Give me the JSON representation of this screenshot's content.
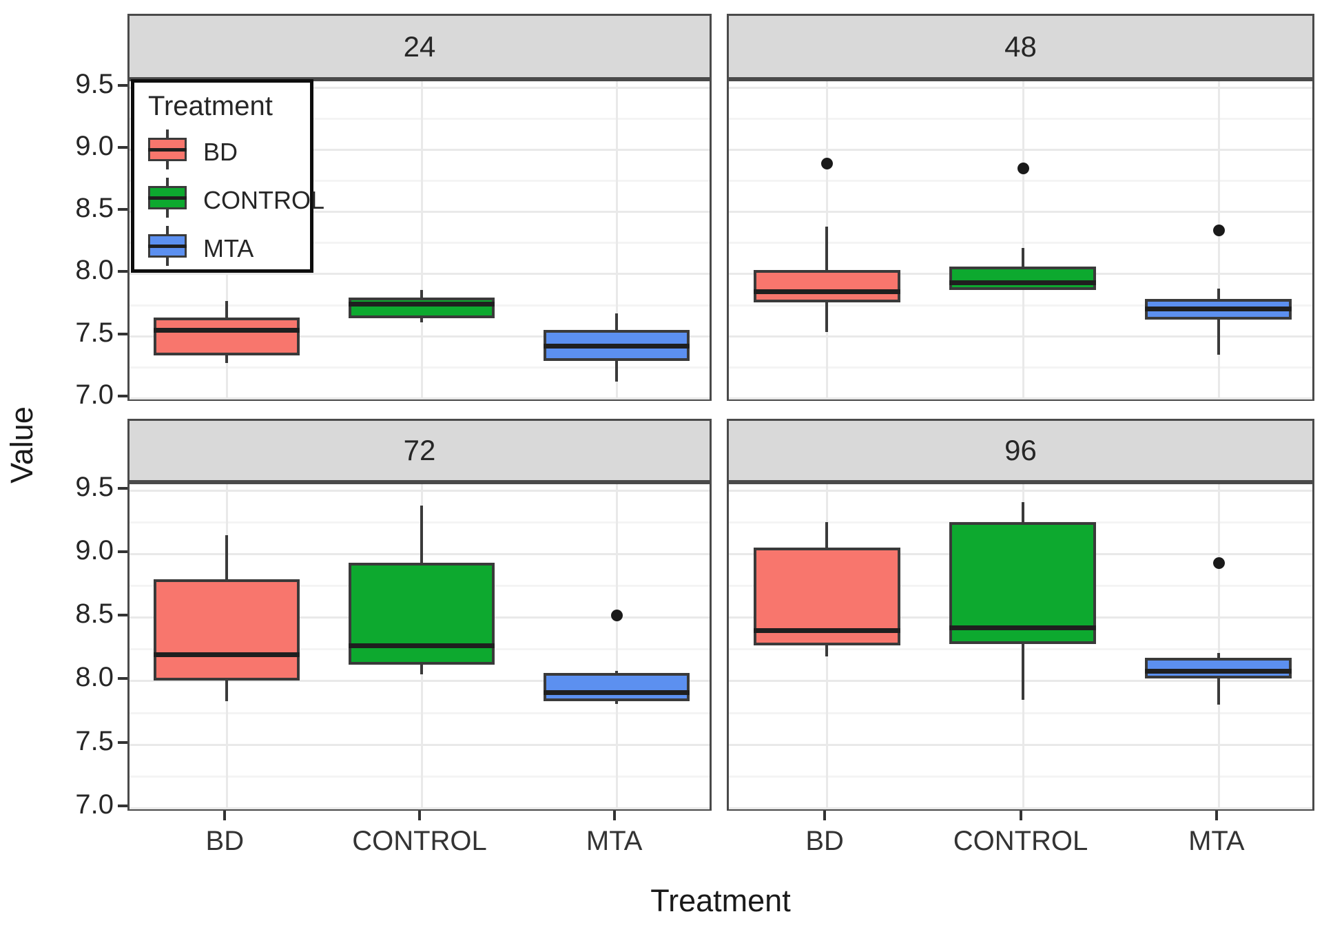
{
  "figure_titles": {
    "y_axis_title": "Value",
    "x_axis_title": "Treatment"
  },
  "legend": {
    "title": "Treatment",
    "items": [
      {
        "label": "BD",
        "color": "#F8766D"
      },
      {
        "label": "CONTROL",
        "color": "#0DA92F"
      },
      {
        "label": "MTA",
        "color": "#5C90F0"
      }
    ]
  },
  "chart_data": {
    "type": "boxplot",
    "xlabel": "Treatment",
    "ylabel": "Value",
    "categories": [
      "BD",
      "CONTROL",
      "MTA"
    ],
    "facet_labels": [
      "24",
      "48",
      "72",
      "96"
    ],
    "ylim": [
      6.96,
      9.55
    ],
    "y_ticks": [
      7.0,
      7.5,
      8.0,
      8.5,
      9.0,
      9.5
    ],
    "y_minor_ticks": [
      7.25,
      7.75,
      8.25,
      8.75,
      9.25
    ],
    "grid": true,
    "legend_position": "inside-top-left-panel",
    "colors": {
      "BD": "#F8766D",
      "CONTROL": "#0DA92F",
      "MTA": "#5C90F0"
    },
    "facets": [
      {
        "label": "24",
        "boxes": [
          {
            "treatment": "BD",
            "whisker_low": 7.28,
            "q1": 7.34,
            "median": 7.55,
            "q3": 7.65,
            "whisker_high": 7.78,
            "outliers": []
          },
          {
            "treatment": "CONTROL",
            "whisker_low": 7.61,
            "q1": 7.64,
            "median": 7.76,
            "q3": 7.81,
            "whisker_high": 7.87,
            "outliers": []
          },
          {
            "treatment": "MTA",
            "whisker_low": 7.13,
            "q1": 7.3,
            "median": 7.42,
            "q3": 7.55,
            "whisker_high": 7.68,
            "outliers": []
          }
        ]
      },
      {
        "label": "48",
        "boxes": [
          {
            "treatment": "BD",
            "whisker_low": 7.53,
            "q1": 7.77,
            "median": 7.86,
            "q3": 8.03,
            "whisker_high": 8.38,
            "outliers": [
              8.89
            ]
          },
          {
            "treatment": "CONTROL",
            "whisker_low": 7.87,
            "q1": 7.87,
            "median": 7.93,
            "q3": 8.06,
            "whisker_high": 8.21,
            "outliers": [
              8.85
            ]
          },
          {
            "treatment": "MTA",
            "whisker_low": 7.35,
            "q1": 7.63,
            "median": 7.72,
            "q3": 7.8,
            "whisker_high": 7.88,
            "outliers": [
              8.35
            ]
          }
        ]
      },
      {
        "label": "72",
        "boxes": [
          {
            "treatment": "BD",
            "whisker_low": 7.84,
            "q1": 8.0,
            "median": 8.21,
            "q3": 8.8,
            "whisker_high": 9.15,
            "outliers": []
          },
          {
            "treatment": "CONTROL",
            "whisker_low": 8.05,
            "q1": 8.13,
            "median": 8.28,
            "q3": 8.93,
            "whisker_high": 9.38,
            "outliers": []
          },
          {
            "treatment": "MTA",
            "whisker_low": 7.82,
            "q1": 7.84,
            "median": 7.91,
            "q3": 8.06,
            "whisker_high": 8.08,
            "outliers": [
              8.52
            ]
          }
        ]
      },
      {
        "label": "96",
        "boxes": [
          {
            "treatment": "BD",
            "whisker_low": 8.19,
            "q1": 8.28,
            "median": 8.4,
            "q3": 9.05,
            "whisker_high": 9.25,
            "outliers": []
          },
          {
            "treatment": "CONTROL",
            "whisker_low": 7.85,
            "q1": 8.29,
            "median": 8.42,
            "q3": 9.25,
            "whisker_high": 9.41,
            "outliers": []
          },
          {
            "treatment": "MTA",
            "whisker_low": 7.81,
            "q1": 8.02,
            "median": 8.08,
            "q3": 8.18,
            "whisker_high": 8.22,
            "outliers": [
              8.93
            ]
          }
        ]
      }
    ]
  }
}
